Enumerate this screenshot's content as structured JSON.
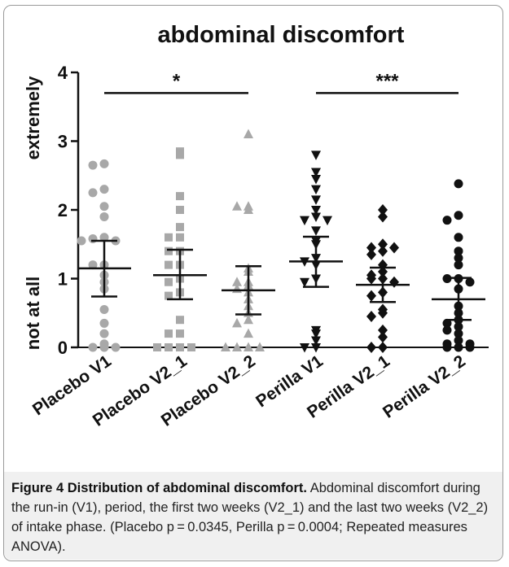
{
  "chart_data": {
    "type": "scatter",
    "title": "abdominal discomfort",
    "ylabel_top": "extremely",
    "ylabel_bottom": "not at all",
    "ylim": [
      0,
      4
    ],
    "yticks": [
      "0",
      "1",
      "2",
      "3",
      "4"
    ],
    "categories": [
      "Placebo V1",
      "Placebo V2_1",
      "Placebo V2_2",
      "Perilla V1",
      "Perilla V2_1",
      "Perilla V2_2"
    ],
    "series": [
      {
        "marker": "circle",
        "color": "#a8a8a8",
        "mean": 1.15,
        "ci": [
          0.74,
          1.55
        ],
        "values": [
          2.67,
          2.65,
          2.3,
          2.25,
          2.05,
          1.9,
          1.6,
          1.58,
          1.55,
          1.55,
          1.2,
          1.2,
          1.05,
          0.95,
          0.85,
          0.55,
          0.35,
          0.2,
          0.05,
          0.0,
          0.0,
          0.0
        ]
      },
      {
        "marker": "square",
        "color": "#a8a8a8",
        "mean": 1.05,
        "ci": [
          0.7,
          1.42
        ],
        "values": [
          2.85,
          2.8,
          2.2,
          2.0,
          1.75,
          1.6,
          1.6,
          1.4,
          1.4,
          1.2,
          1.2,
          1.0,
          0.95,
          0.8,
          0.75,
          0.4,
          0.2,
          0.2,
          0.0,
          0.0,
          0.0,
          0.0
        ]
      },
      {
        "marker": "triangle-up",
        "color": "#a8a8a8",
        "mean": 0.83,
        "ci": [
          0.48,
          1.18
        ],
        "values": [
          3.1,
          2.05,
          2.05,
          2.0,
          1.15,
          1.1,
          0.95,
          0.95,
          0.9,
          0.85,
          0.8,
          0.7,
          0.6,
          0.5,
          0.4,
          0.35,
          0.2,
          0.0,
          0.0,
          0.0,
          0.0
        ]
      },
      {
        "marker": "triangle-down",
        "color": "#111111",
        "mean": 1.25,
        "ci": [
          0.88,
          1.61
        ],
        "values": [
          2.8,
          2.55,
          2.45,
          2.3,
          2.15,
          2.0,
          1.9,
          1.85,
          1.85,
          1.7,
          1.55,
          1.5,
          1.3,
          1.25,
          1.2,
          1.0,
          0.95,
          0.25,
          0.2,
          0.1,
          0.0,
          0.0
        ]
      },
      {
        "marker": "diamond",
        "color": "#111111",
        "mean": 0.91,
        "ci": [
          0.66,
          1.16
        ],
        "values": [
          2.0,
          1.9,
          1.5,
          1.45,
          1.45,
          1.4,
          1.35,
          1.2,
          1.1,
          1.05,
          1.0,
          1.0,
          0.95,
          0.8,
          0.75,
          0.55,
          0.5,
          0.45,
          0.25,
          0.15,
          0.0,
          0.0
        ]
      },
      {
        "marker": "circle",
        "color": "#111111",
        "mean": 0.7,
        "ci": [
          0.4,
          1.01
        ],
        "values": [
          2.38,
          1.92,
          1.85,
          1.6,
          1.4,
          1.3,
          1.2,
          1.0,
          1.0,
          0.95,
          0.85,
          0.6,
          0.5,
          0.4,
          0.35,
          0.3,
          0.25,
          0.2,
          0.1,
          0.05,
          0.05,
          0.0,
          0.0,
          0.0
        ]
      }
    ],
    "significance": [
      {
        "label": "*",
        "from": 0,
        "to": 2,
        "y": 3.7
      },
      {
        "label": "***",
        "from": 3,
        "to": 5,
        "y": 3.7
      }
    ]
  },
  "caption": {
    "heading": "Figure 4 Distribution of abdominal discomfort.",
    "body": "Abdominal discomfort during the run-in (V1), period, the first two weeks (V2_1) and the last two weeks (V2_2) of intake phase. (Placebo p = 0.0345, Perilla p = 0.0004; Repeated measures ANOVA)."
  }
}
